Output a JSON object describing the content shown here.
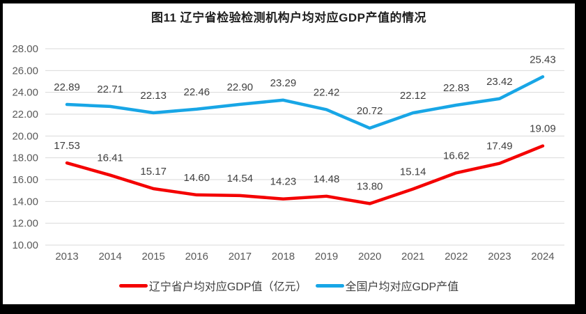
{
  "title": "图11 辽宁省检验检测机构户均对应GDP产值的情况",
  "colors": {
    "background": "#FFFFFF",
    "frame": "#000000",
    "grid": "#D9D9D9",
    "axis_text": "#595959",
    "data_label_text": "#3F3F3F",
    "title_text": "#1F1F1F",
    "series_liaoning": "#F40000",
    "series_national": "#18A6E6"
  },
  "chart_data": {
    "type": "line",
    "title": "图11 辽宁省检验检测机构户均对应GDP产值的情况",
    "categories": [
      "2013",
      "2014",
      "2015",
      "2016",
      "2017",
      "2018",
      "2019",
      "2020",
      "2021",
      "2022",
      "2023",
      "2024"
    ],
    "series": [
      {
        "id": "liaoning",
        "name": "辽宁省户均对应GDP值（亿元）",
        "color": "#F40000",
        "values": [
          17.53,
          16.41,
          15.17,
          14.6,
          14.54,
          14.23,
          14.48,
          13.8,
          15.14,
          16.62,
          17.49,
          19.09
        ]
      },
      {
        "id": "national",
        "name": "全国户均对应GDP产值",
        "color": "#18A6E6",
        "values": [
          22.89,
          22.71,
          22.13,
          22.46,
          22.9,
          23.29,
          22.42,
          20.72,
          22.12,
          22.83,
          23.42,
          25.43
        ]
      }
    ],
    "xlabel": "",
    "ylabel": "",
    "ylim": [
      10,
      28
    ],
    "ytick_step": 2,
    "yticks": [
      "28.00",
      "26.00",
      "24.00",
      "22.00",
      "20.00",
      "18.00",
      "16.00",
      "14.00",
      "12.00",
      "10.00"
    ],
    "grid": true,
    "data_labels": true,
    "legend_position": "bottom"
  }
}
